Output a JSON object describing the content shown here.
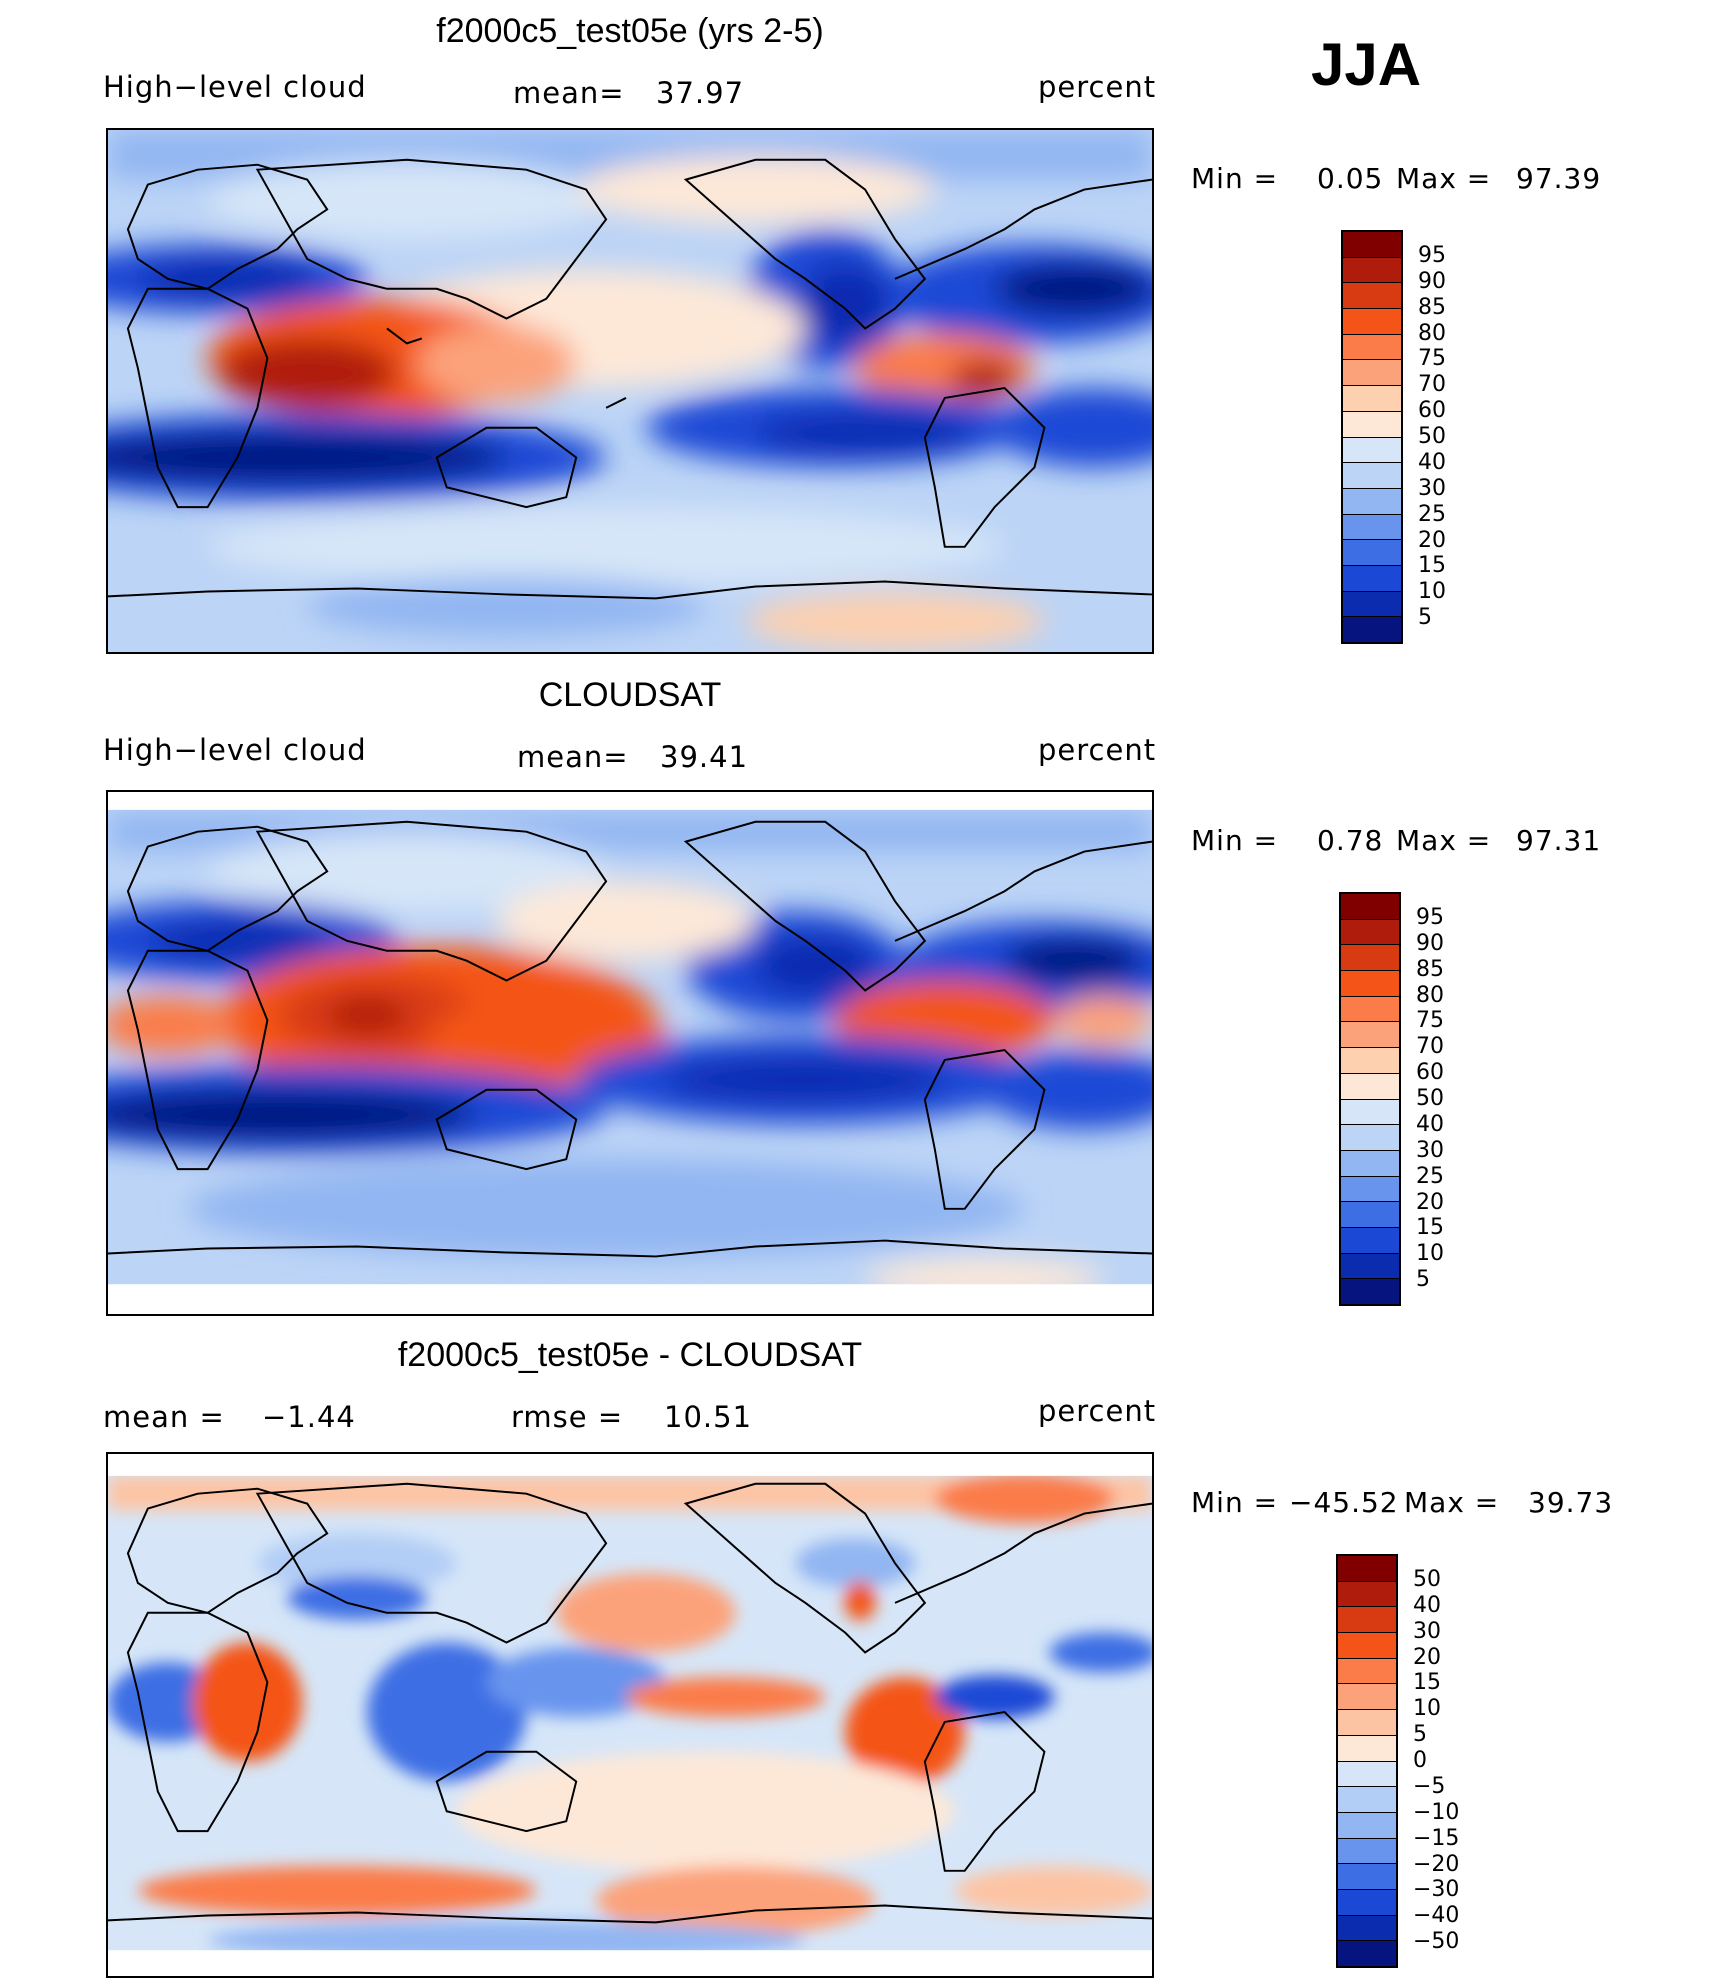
{
  "season": "JJA",
  "top_panel": {
    "title": "f2000c5_test05e (yrs 2-5)",
    "left_label": "High−level cloud",
    "mean_label": "mean=",
    "mean_value": "37.97",
    "units": "percent",
    "min_max": {
      "min_label": "Min  =",
      "min": "0.05",
      "max_label": "Max  =",
      "max": "97.39"
    }
  },
  "middle_panel": {
    "title": "CLOUDSAT",
    "left_label": "High−level cloud",
    "mean_label": "mean=",
    "mean_value": "39.41",
    "units": "percent",
    "min_max": {
      "min_label": "Min  =",
      "min": "0.78",
      "max_label": "Max  =",
      "max": "97.31"
    }
  },
  "bottom_panel": {
    "title": "f2000c5_test05e - CLOUDSAT",
    "mean_label": "mean  =",
    "mean_value": "−1.44",
    "rmse_label": "rmse  =",
    "rmse_value": "10.51",
    "units": "percent",
    "min_max": {
      "min_label": "Min  =",
      "min": "−45.52",
      "max_label": "Max  =",
      "max": "39.73"
    }
  },
  "colorbar_abs": {
    "labels": [
      "95",
      "90",
      "85",
      "80",
      "75",
      "70",
      "60",
      "50",
      "40",
      "30",
      "25",
      "20",
      "15",
      "10",
      "5"
    ],
    "colors": [
      "#800000",
      "#b01c0c",
      "#d83a12",
      "#f45418",
      "#fb7c48",
      "#fca27a",
      "#fdd0b0",
      "#fde8d8",
      "#d6e6f8",
      "#bcd4f6",
      "#92b6f2",
      "#6894ee",
      "#3e6ee4",
      "#1c48d6",
      "#0c2cb0",
      "#061480"
    ]
  },
  "colorbar_diff": {
    "labels": [
      "50",
      "40",
      "30",
      "20",
      "15",
      "10",
      "5",
      "0",
      "−5",
      "−10",
      "−15",
      "−20",
      "−30",
      "−40",
      "−50"
    ],
    "colors": [
      "#800000",
      "#b01c0c",
      "#d83a12",
      "#f45418",
      "#fb7c48",
      "#fca27a",
      "#fdc4a4",
      "#fde8d8",
      "#d6e6f8",
      "#b2cef6",
      "#92b6f2",
      "#6894ee",
      "#3e6ee4",
      "#1c48d6",
      "#0c2cb0",
      "#061480"
    ]
  }
}
